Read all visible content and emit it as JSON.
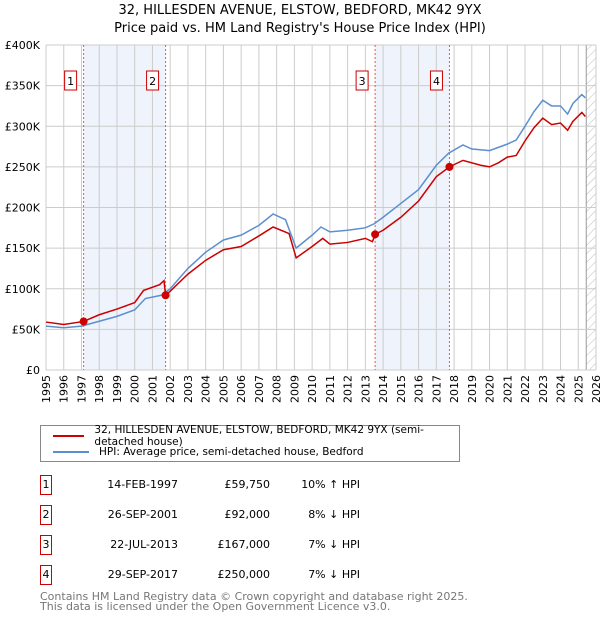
{
  "chart_data": {
    "type": "line",
    "title": "32, HILLESDEN AVENUE, ELSTOW, BEDFORD, MK42 9YX",
    "subtitle": "Price paid vs. HM Land Registry's House Price Index (HPI)",
    "xlim": [
      1995,
      2026
    ],
    "ylim": [
      0,
      400000
    ],
    "x_ticks": [
      "1995",
      "1996",
      "1997",
      "1998",
      "1999",
      "2000",
      "2001",
      "2002",
      "2003",
      "2004",
      "2005",
      "2006",
      "2007",
      "2008",
      "2009",
      "2010",
      "2011",
      "2012",
      "2013",
      "2014",
      "2015",
      "2016",
      "2017",
      "2018",
      "2019",
      "2020",
      "2021",
      "2022",
      "2023",
      "2024",
      "2025",
      "2026"
    ],
    "y_ticks": [
      {
        "v": 0,
        "label": "£0"
      },
      {
        "v": 50000,
        "label": "£50K"
      },
      {
        "v": 100000,
        "label": "£100K"
      },
      {
        "v": 150000,
        "label": "£150K"
      },
      {
        "v": 200000,
        "label": "£200K"
      },
      {
        "v": 250000,
        "label": "£250K"
      },
      {
        "v": 300000,
        "label": "£300K"
      },
      {
        "v": 350000,
        "label": "£350K"
      },
      {
        "v": 400000,
        "label": "£400K"
      }
    ],
    "grid": true,
    "forecast_from": 2025.45,
    "shaded_ranges": [
      [
        1997.12,
        2001.74
      ],
      [
        2013.55,
        2017.74
      ]
    ],
    "series": [
      {
        "name": "32, HILLESDEN AVENUE, ELSTOW, BEDFORD, MK42 9YX (semi-detached house)",
        "color": "#cc0000",
        "points": [
          [
            1995,
            59000
          ],
          [
            1996,
            56000
          ],
          [
            1997.12,
            59750
          ],
          [
            1998,
            68000
          ],
          [
            1999,
            75000
          ],
          [
            2000,
            83000
          ],
          [
            2000.5,
            98000
          ],
          [
            2001.4,
            105000
          ],
          [
            2001.65,
            110000
          ],
          [
            2001.74,
            92000
          ],
          [
            2002,
            97000
          ],
          [
            2003,
            118000
          ],
          [
            2004,
            135000
          ],
          [
            2005,
            148000
          ],
          [
            2006,
            152000
          ],
          [
            2007,
            165000
          ],
          [
            2007.8,
            176000
          ],
          [
            2008.7,
            168000
          ],
          [
            2009.1,
            138000
          ],
          [
            2010,
            152000
          ],
          [
            2010.6,
            162000
          ],
          [
            2011,
            155000
          ],
          [
            2012,
            157000
          ],
          [
            2013,
            162000
          ],
          [
            2013.4,
            158000
          ],
          [
            2013.55,
            167000
          ],
          [
            2014,
            172000
          ],
          [
            2015,
            188000
          ],
          [
            2016,
            208000
          ],
          [
            2017,
            238000
          ],
          [
            2017.74,
            250000
          ],
          [
            2018.5,
            258000
          ],
          [
            2019.5,
            252000
          ],
          [
            2020,
            250000
          ],
          [
            2020.5,
            255000
          ],
          [
            2021,
            262000
          ],
          [
            2021.5,
            264000
          ],
          [
            2022,
            282000
          ],
          [
            2022.5,
            298000
          ],
          [
            2023,
            310000
          ],
          [
            2023.5,
            302000
          ],
          [
            2024,
            304000
          ],
          [
            2024.4,
            295000
          ],
          [
            2024.7,
            306000
          ],
          [
            2025.2,
            317000
          ],
          [
            2025.4,
            312000
          ]
        ]
      },
      {
        "name": "HPI: Average price, semi-detached house, Bedford",
        "color": "#5b8fd0",
        "points": [
          [
            1995,
            54000
          ],
          [
            1996,
            52000
          ],
          [
            1997,
            54000
          ],
          [
            1998,
            60000
          ],
          [
            1999,
            66000
          ],
          [
            2000,
            74000
          ],
          [
            2000.6,
            88000
          ],
          [
            2001.5,
            92000
          ],
          [
            2002,
            100000
          ],
          [
            2003,
            125000
          ],
          [
            2004,
            145000
          ],
          [
            2005,
            160000
          ],
          [
            2006,
            166000
          ],
          [
            2007,
            178000
          ],
          [
            2007.8,
            192000
          ],
          [
            2008.5,
            185000
          ],
          [
            2009.1,
            150000
          ],
          [
            2010,
            166000
          ],
          [
            2010.5,
            176000
          ],
          [
            2011,
            170000
          ],
          [
            2012,
            172000
          ],
          [
            2013,
            175000
          ],
          [
            2013.5,
            180000
          ],
          [
            2014,
            188000
          ],
          [
            2015,
            205000
          ],
          [
            2016,
            222000
          ],
          [
            2017,
            252000
          ],
          [
            2017.7,
            267000
          ],
          [
            2018.5,
            277000
          ],
          [
            2019,
            272000
          ],
          [
            2020,
            270000
          ],
          [
            2021,
            278000
          ],
          [
            2021.5,
            283000
          ],
          [
            2022,
            300000
          ],
          [
            2022.5,
            318000
          ],
          [
            2023,
            332000
          ],
          [
            2023.5,
            325000
          ],
          [
            2024,
            325000
          ],
          [
            2024.4,
            315000
          ],
          [
            2024.7,
            328000
          ],
          [
            2025.2,
            339000
          ],
          [
            2025.4,
            335000
          ]
        ]
      }
    ],
    "sales": [
      {
        "n": "1",
        "x": 1997.12,
        "date": "14-FEB-1997",
        "price": 59750,
        "price_label": "£59,750",
        "hpi": "10% ↑ HPI"
      },
      {
        "n": "2",
        "x": 2001.74,
        "date": "26-SEP-2001",
        "price": 92000,
        "price_label": "£92,000",
        "hpi": "8% ↓ HPI"
      },
      {
        "n": "3",
        "x": 2013.55,
        "date": "22-JUL-2013",
        "price": 167000,
        "price_label": "£167,000",
        "hpi": "7% ↓ HPI"
      },
      {
        "n": "4",
        "x": 2017.74,
        "date": "29-SEP-2017",
        "price": 250000,
        "price_label": "£250,000",
        "hpi": "7% ↓ HPI"
      }
    ]
  },
  "footer": {
    "line1": "Contains HM Land Registry data © Crown copyright and database right 2025.",
    "line2": "This data is licensed under the Open Government Licence v3.0."
  }
}
